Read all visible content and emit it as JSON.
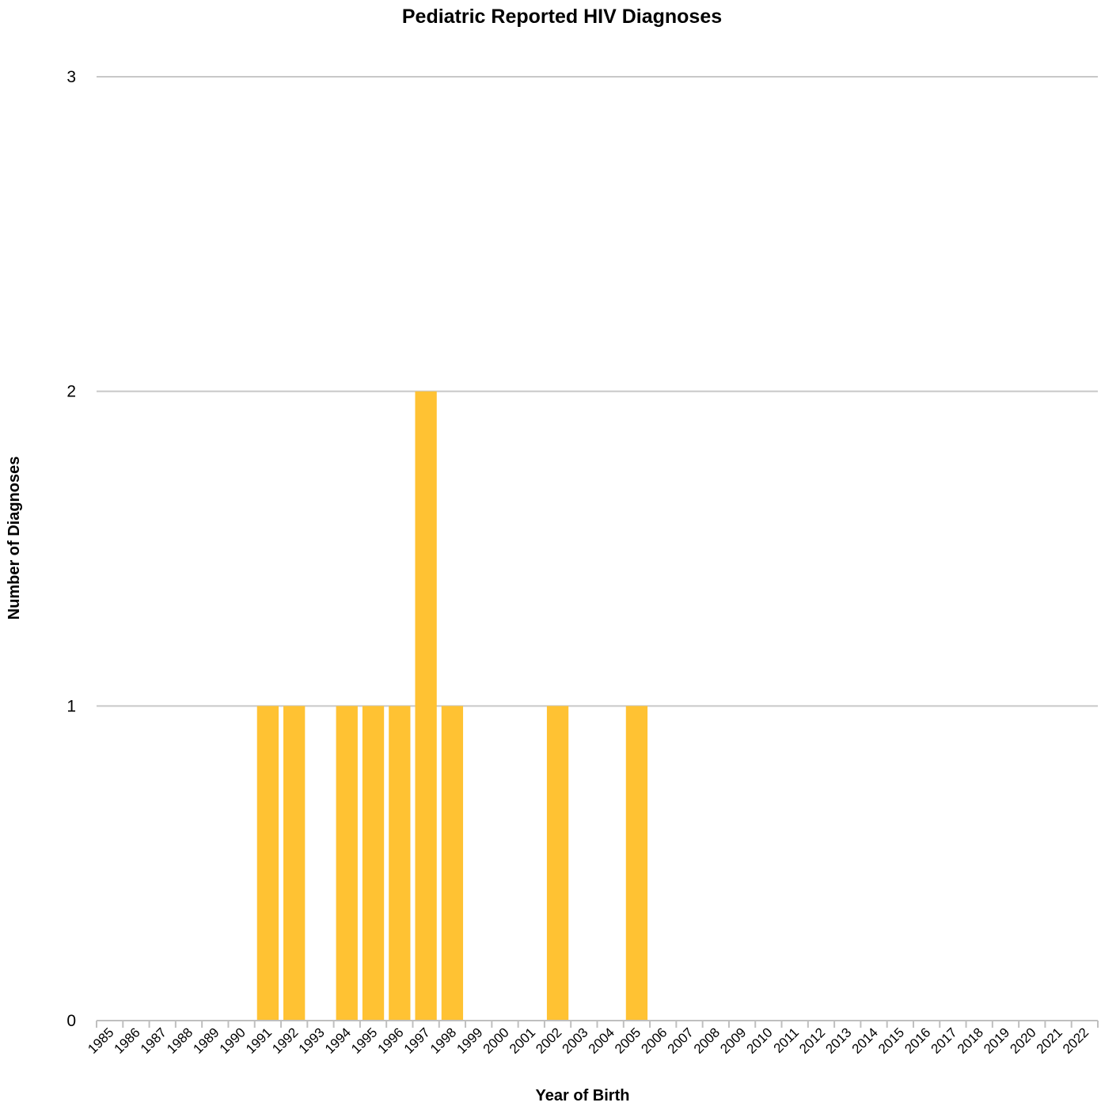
{
  "chart_data": {
    "type": "bar",
    "title": "Pediatric Reported HIV Diagnoses",
    "xlabel": "Year of Birth",
    "ylabel": "Number of Diagnoses",
    "ylim": [
      0,
      3
    ],
    "yticks": [
      "0",
      "1",
      "2",
      "3"
    ],
    "grid": true,
    "bar_color": "#FFC233",
    "categories": [
      "1985",
      "1986",
      "1987",
      "1988",
      "1989",
      "1990",
      "1991",
      "1992",
      "1993",
      "1994",
      "1995",
      "1996",
      "1997",
      "1998",
      "1999",
      "2000",
      "2001",
      "2002",
      "2003",
      "2004",
      "2005",
      "2006",
      "2007",
      "2008",
      "2009",
      "2010",
      "2011",
      "2012",
      "2013",
      "2014",
      "2015",
      "2016",
      "2017",
      "2018",
      "2019",
      "2020",
      "2021",
      "2022"
    ],
    "values": [
      0,
      0,
      0,
      0,
      0,
      0,
      1,
      1,
      0,
      1,
      1,
      1,
      2,
      1,
      0,
      0,
      0,
      1,
      0,
      0,
      1,
      0,
      0,
      0,
      0,
      0,
      0,
      0,
      0,
      0,
      0,
      0,
      0,
      0,
      0,
      0,
      0,
      0
    ]
  }
}
